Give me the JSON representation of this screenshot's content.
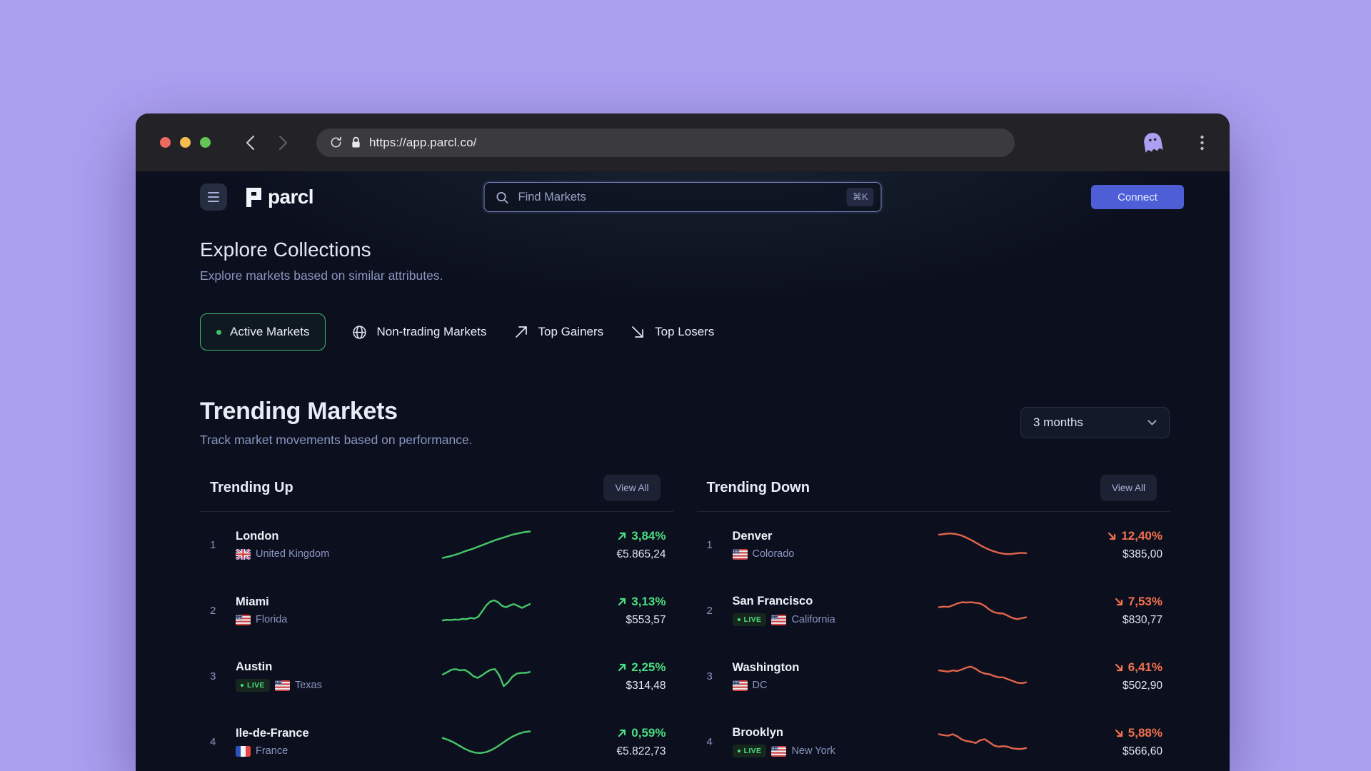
{
  "theme": {
    "accent": "#4d5ed6",
    "brand_purple": "#ab9ff2",
    "live": "#4ade80",
    "up_text": "#4ade80",
    "up_line": "#46c76a",
    "down_text": "#f4714e",
    "down_line": "#e2654a",
    "traffic_red": "#ee6a5f",
    "traffic_yellow": "#f5bd4f",
    "traffic_green": "#62c554"
  },
  "browser": {
    "url": "https://app.parcl.co/"
  },
  "header": {
    "logo_text": "parcl",
    "search": {
      "placeholder": "Find Markets",
      "shortcut": "⌘K"
    },
    "connect_label": "Connect"
  },
  "explore": {
    "title": "Explore Collections",
    "subtitle": "Explore markets based on similar attributes.",
    "filters": [
      {
        "label": "Active Markets",
        "icon": "dot",
        "active": true
      },
      {
        "label": "Non-trading Markets",
        "icon": "globe",
        "active": false
      },
      {
        "label": "Top Gainers",
        "icon": "arrow-up-right",
        "active": false
      },
      {
        "label": "Top Losers",
        "icon": "arrow-down-right",
        "active": false
      }
    ]
  },
  "trending": {
    "title": "Trending Markets",
    "subtitle": "Track market movements based on performance.",
    "timeframe": "3 months",
    "view_all_label": "View All",
    "up": {
      "title": "Trending Up",
      "rows": [
        {
          "rank": "1",
          "name": "London",
          "flag": "gb",
          "region": "United Kingdom",
          "live": false,
          "change": "3,84%",
          "price": "€5.865,24",
          "spark": [
            8,
            12,
            17,
            23,
            30,
            36,
            43,
            50,
            57,
            64,
            70,
            76,
            82,
            86,
            90,
            92
          ]
        },
        {
          "rank": "2",
          "name": "Miami",
          "flag": "us",
          "region": "Florida",
          "live": false,
          "change": "3,13%",
          "price": "$553,57",
          "spark": [
            18,
            20,
            19,
            21,
            20,
            23,
            22,
            26,
            24,
            30,
            48,
            66,
            78,
            82,
            76,
            64,
            60,
            66,
            70,
            64,
            58,
            64,
            70
          ]
        },
        {
          "rank": "3",
          "name": "Austin",
          "flag": "us",
          "region": "Texas",
          "live": true,
          "change": "2,25%",
          "price": "$314,48",
          "spark": [
            55,
            62,
            70,
            72,
            68,
            70,
            62,
            50,
            44,
            52,
            62,
            70,
            72,
            52,
            18,
            30,
            48,
            58,
            60,
            60,
            63
          ]
        },
        {
          "rank": "4",
          "name": "Ile-de-France",
          "flag": "fr",
          "region": "France",
          "live": false,
          "change": "0,59%",
          "price": "€5.822,73",
          "spark": [
            62,
            56,
            48,
            38,
            28,
            20,
            15,
            14,
            17,
            24,
            34,
            46,
            58,
            68,
            76,
            81,
            83
          ]
        }
      ]
    },
    "down": {
      "title": "Trending Down",
      "rows": [
        {
          "rank": "1",
          "name": "Denver",
          "flag": "us",
          "region": "Colorado",
          "live": false,
          "change": "12,40%",
          "price": "$385,00",
          "spark": [
            82,
            84,
            86,
            84,
            80,
            73,
            64,
            54,
            44,
            36,
            29,
            24,
            21,
            20,
            22,
            24,
            23
          ]
        },
        {
          "rank": "2",
          "name": "San Francisco",
          "flag": "us",
          "region": "California",
          "live": true,
          "change": "7,53%",
          "price": "$830,77",
          "spark": [
            60,
            62,
            61,
            66,
            72,
            76,
            75,
            76,
            74,
            72,
            64,
            52,
            44,
            41,
            40,
            33,
            26,
            22,
            25,
            28
          ]
        },
        {
          "rank": "3",
          "name": "Washington",
          "flag": "us",
          "region": "DC",
          "live": false,
          "change": "6,41%",
          "price": "$502,90",
          "spark": [
            68,
            66,
            64,
            68,
            66,
            71,
            77,
            80,
            73,
            63,
            58,
            56,
            50,
            46,
            46,
            40,
            35,
            29,
            27,
            30
          ]
        },
        {
          "rank": "4",
          "name": "Brooklyn",
          "flag": "us",
          "region": "New York",
          "live": true,
          "change": "5,88%",
          "price": "$566,60",
          "spark": [
            74,
            71,
            69,
            74,
            67,
            57,
            52,
            50,
            46,
            55,
            58,
            48,
            38,
            34,
            36,
            34,
            29,
            27,
            27,
            30
          ]
        }
      ]
    }
  }
}
